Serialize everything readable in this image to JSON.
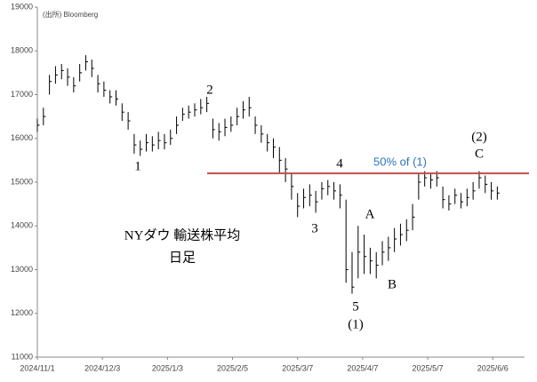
{
  "chart_data": {
    "type": "ohlc",
    "source": "(出所) Bloomberg",
    "title": "NYダウ 輸送株平均",
    "subtitle": "日足",
    "color": "#000000",
    "x": [
      0,
      2,
      4,
      6,
      8,
      10,
      12,
      14,
      16,
      18,
      20,
      22,
      24,
      26,
      28,
      30,
      32,
      34,
      36,
      38,
      40,
      42,
      44,
      46,
      48,
      50,
      52,
      54,
      56,
      58,
      60,
      62,
      64,
      66,
      68,
      70,
      72,
      74,
      76,
      78,
      80,
      82,
      84,
      86,
      88,
      90,
      92,
      94,
      96,
      98,
      100,
      102,
      104,
      106,
      108,
      110,
      112,
      114,
      116,
      118,
      120,
      122,
      124,
      126,
      128,
      130,
      132,
      134,
      136,
      138,
      140,
      142,
      144,
      146,
      148,
      150,
      152
    ],
    "close": [
      16300,
      16500,
      17300,
      17450,
      17550,
      17400,
      17200,
      17500,
      17750,
      17600,
      17250,
      17100,
      16950,
      16900,
      16600,
      16400,
      15850,
      15750,
      15900,
      15850,
      15950,
      15900,
      16000,
      16300,
      16550,
      16600,
      16650,
      16700,
      16800,
      16200,
      16150,
      16250,
      16300,
      16500,
      16650,
      16700,
      16300,
      16100,
      15900,
      15800,
      15500,
      15300,
      14900,
      14450,
      14650,
      14700,
      14550,
      14850,
      14900,
      14800,
      14700,
      13000,
      12600,
      13400,
      13300,
      13200,
      13100,
      13400,
      13500,
      13700,
      13800,
      13900,
      14200,
      15000,
      15100,
      15050,
      15100,
      14600,
      14500,
      14700,
      14550,
      14650,
      14800,
      15100,
      14950,
      14800,
      14750
    ],
    "low": [
      16150,
      16300,
      17000,
      17250,
      17350,
      17200,
      17050,
      17300,
      17550,
      17400,
      17050,
      16950,
      16800,
      16750,
      16400,
      16200,
      15650,
      15600,
      15700,
      15700,
      15750,
      15750,
      15850,
      16100,
      16400,
      16450,
      16500,
      16550,
      16600,
      16000,
      15950,
      16050,
      16150,
      16300,
      16450,
      16500,
      16100,
      15900,
      15700,
      15550,
      15200,
      15000,
      14600,
      14200,
      14400,
      14450,
      14300,
      14600,
      14700,
      14600,
      14400,
      12700,
      12450,
      12800,
      12900,
      12900,
      12800,
      13100,
      13200,
      13400,
      13550,
      13650,
      13900,
      14600,
      14900,
      14850,
      14900,
      14400,
      14350,
      14500,
      14400,
      14450,
      14600,
      14850,
      14750,
      14600,
      14600
    ],
    "high": [
      16450,
      16700,
      17450,
      17650,
      17700,
      17600,
      17400,
      17700,
      17900,
      17800,
      17450,
      17300,
      17100,
      17100,
      16800,
      16600,
      16100,
      15950,
      16100,
      16050,
      16150,
      16100,
      16200,
      16500,
      16700,
      16750,
      16800,
      16900,
      16950,
      16450,
      16350,
      16450,
      16500,
      16700,
      16850,
      16950,
      16500,
      16300,
      16100,
      16000,
      15800,
      15550,
      15200,
      14750,
      14850,
      14950,
      14800,
      15000,
      15050,
      15000,
      14950,
      14600,
      13400,
      14000,
      13800,
      13500,
      13400,
      13650,
      13750,
      13950,
      14050,
      14150,
      14500,
      15200,
      15250,
      15200,
      15250,
      14900,
      14700,
      14850,
      14750,
      14850,
      15000,
      15250,
      15150,
      15000,
      14900
    ],
    "xlim": [
      0,
      161
    ],
    "xticks": [
      {
        "value": 0,
        "label": "2024/11/1"
      },
      {
        "value": 21.5,
        "label": "2024/12/3"
      },
      {
        "value": 43,
        "label": "2025/1/3"
      },
      {
        "value": 64.5,
        "label": "2025/2/5"
      },
      {
        "value": 86,
        "label": "2025/3/7"
      },
      {
        "value": 107.5,
        "label": "2025/4/7"
      },
      {
        "value": 129,
        "label": "2025/5/7"
      },
      {
        "value": 150.5,
        "label": "2025/6/6"
      }
    ],
    "ylim": [
      11000,
      19000
    ],
    "yticks": [
      11000,
      12000,
      13000,
      14000,
      15000,
      16000,
      17000,
      18000,
      19000
    ],
    "reference_line": {
      "value": 15200,
      "label": "50% of (1)",
      "color": "#c0504d",
      "label_color": "#2e75b6"
    },
    "annotations": [
      "1",
      "2",
      "3",
      "4",
      "5",
      "(1)",
      "A",
      "B",
      "C",
      "(2)"
    ]
  }
}
